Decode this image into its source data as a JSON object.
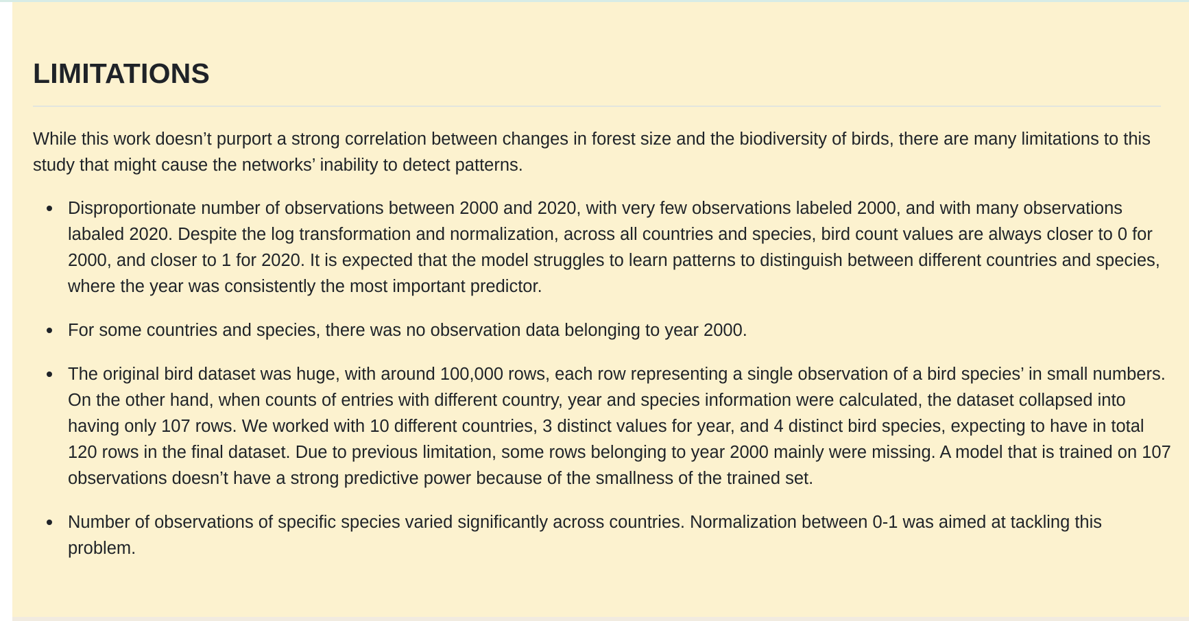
{
  "section": {
    "title": "LIMITATIONS",
    "intro": "While this work doesn’t purport a strong correlation between changes in forest size and the biodiversity of birds, there are many limitations to this study that might cause the networks’ inability to detect patterns.",
    "items": [
      "Disproportionate number of observations between 2000 and 2020, with very few observations labeled 2000, and with many observations labaled 2020. Despite the log transformation and normalization, across all countries and species, bird count values are always closer to 0 for 2000, and closer to 1 for 2020. It is expected that the model struggles to learn patterns to distinguish between different countries and species, where the year was consistently the most important predictor.",
      "For some countries and species, there was no observation data belonging to year 2000.",
      "The original bird dataset was huge, with around 100,000 rows, each row representing a single observation of a bird species’ in small numbers. On the other hand, when counts of entries with different country, year and species information were calculated, the dataset collapsed into having only 107 rows. We worked with 10 different countries, 3 distinct values for year, and 4 distinct bird species, expecting to have in total 120 rows in the final dataset. Due to previous limitation, some rows belonging to year 2000 mainly were missing. A model that is trained on 107 observations doesn’t have a strong predictive power because of the smallness of the trained set.",
      "Number of observations of specific species varied significantly across countries. Normalization between 0-1 was aimed at tackling this problem."
    ]
  },
  "colors": {
    "note_background": "#fcf2cf",
    "text": "#1f2328",
    "divider": "#e2e5df"
  }
}
